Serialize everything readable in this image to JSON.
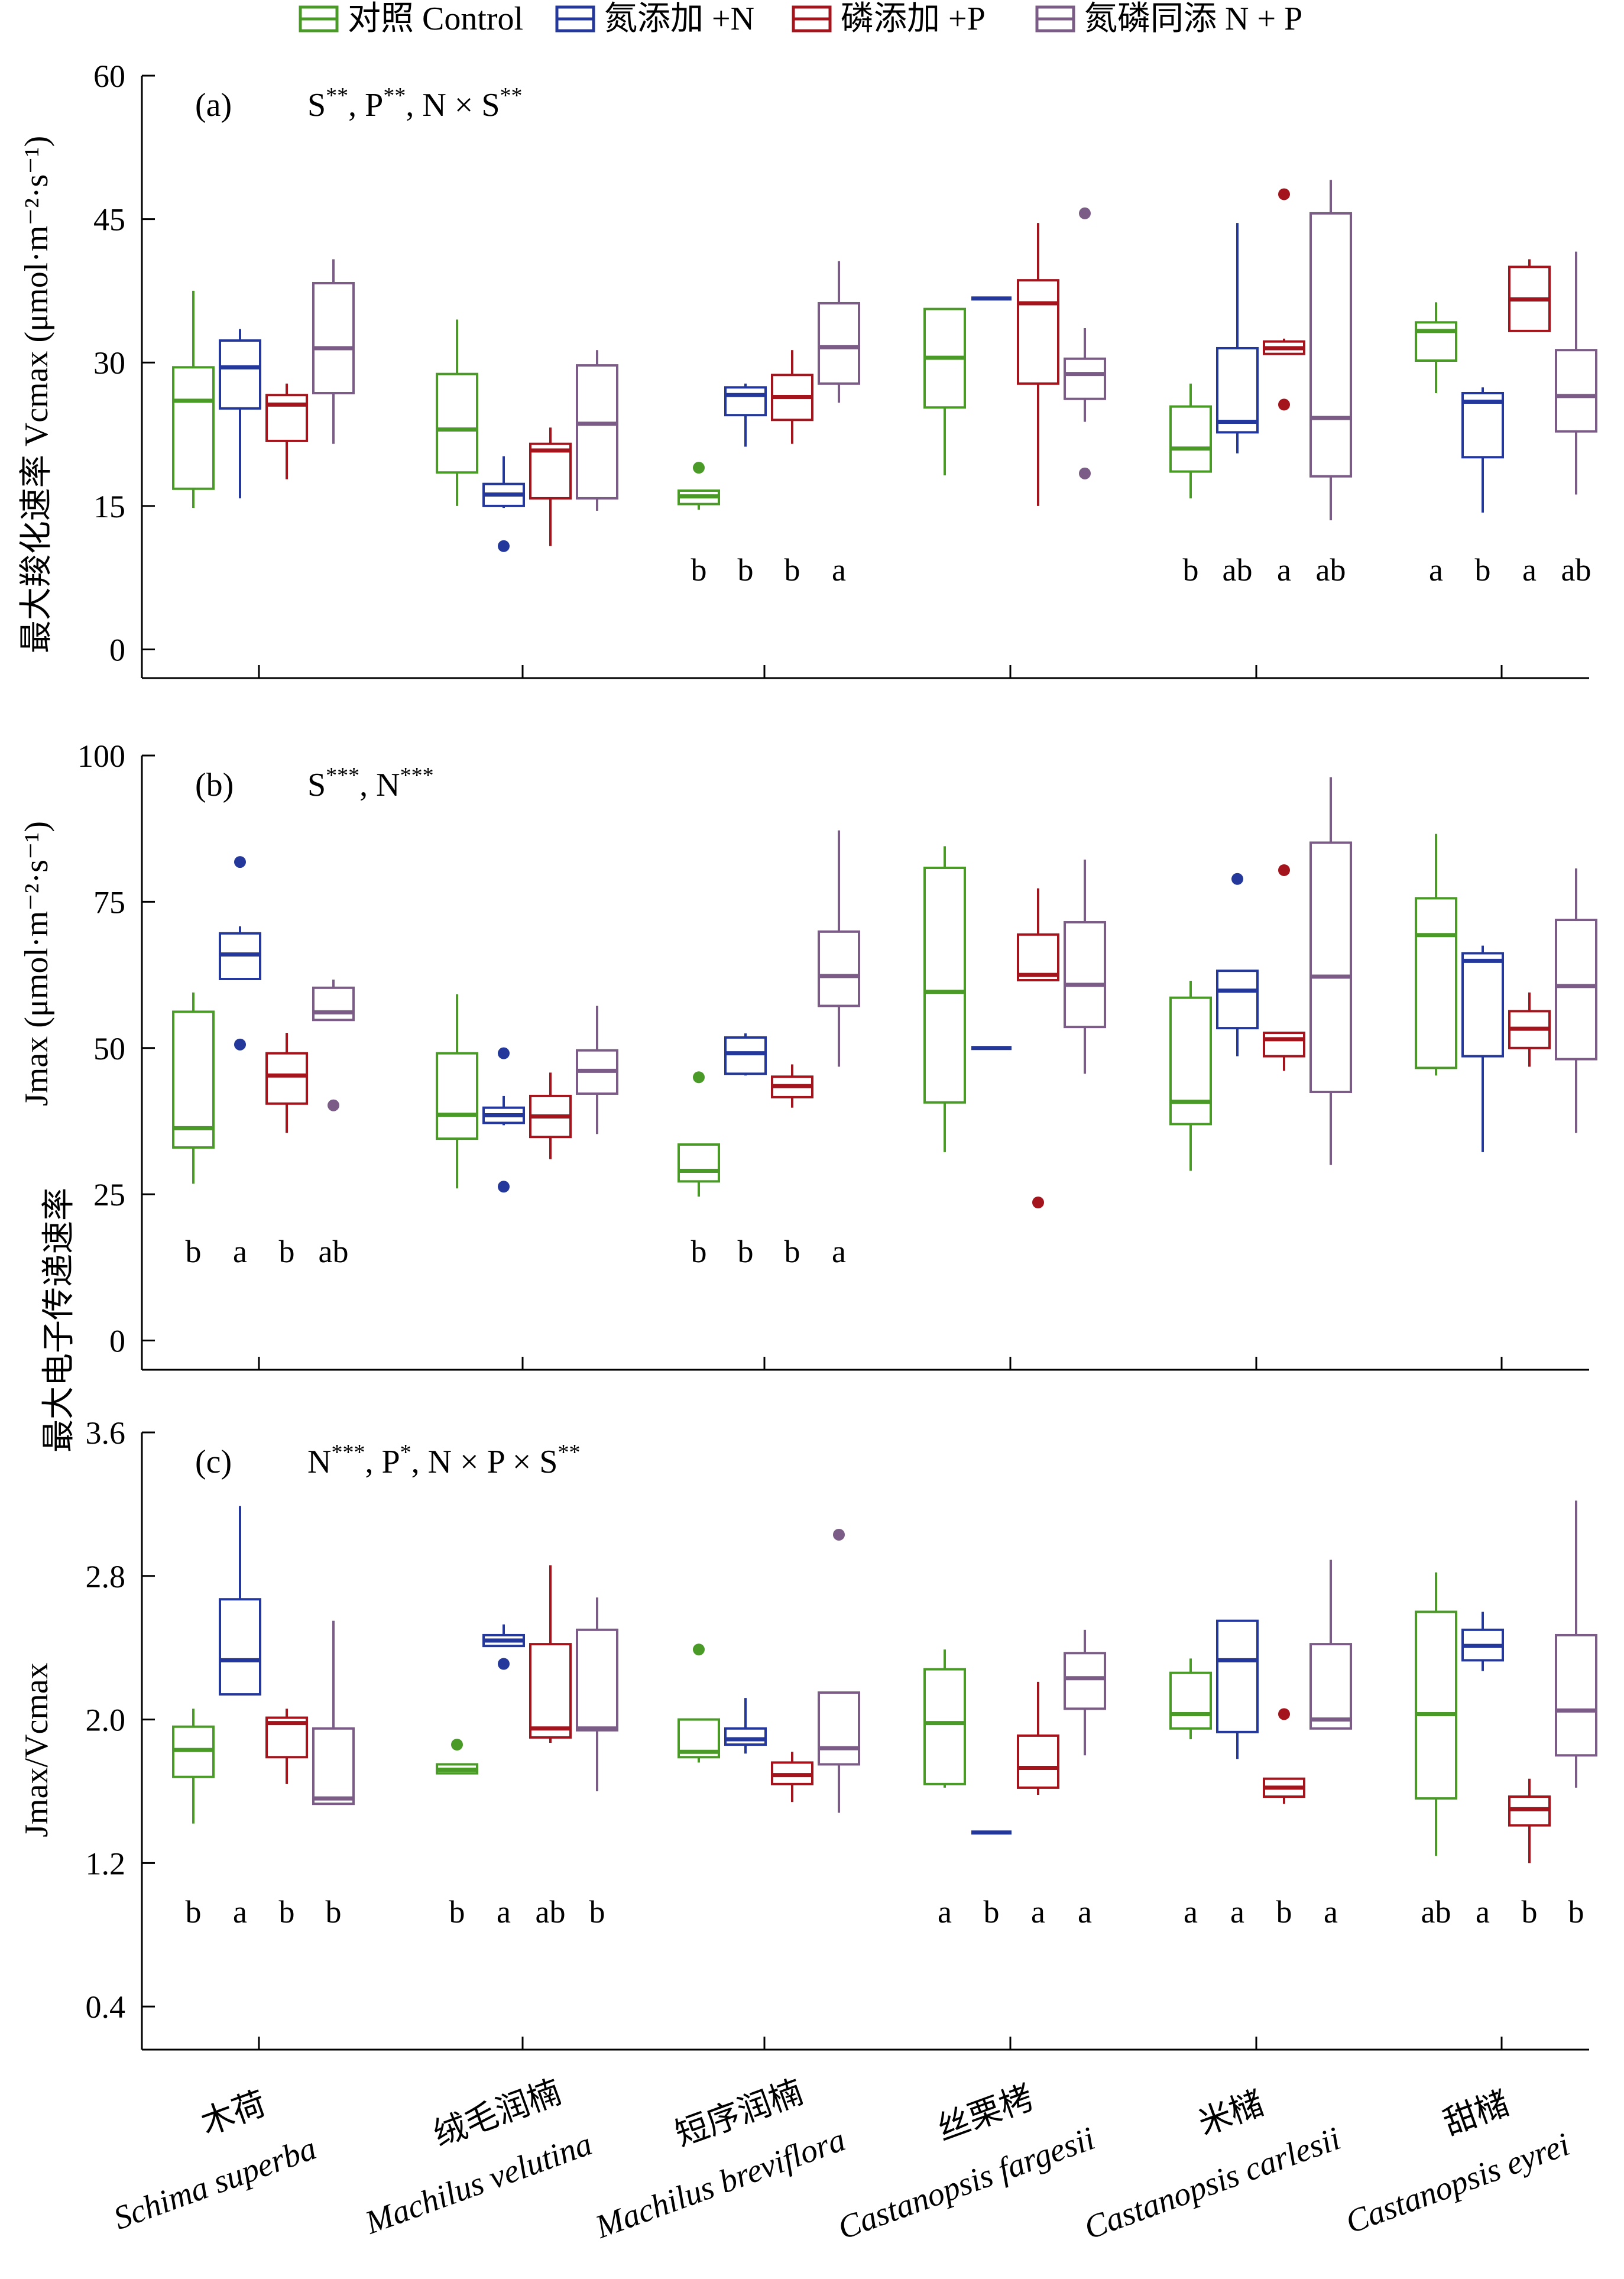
{
  "legend": {
    "items": [
      {
        "label": "对照 Control",
        "color": "#4a9a27"
      },
      {
        "label": "氮添加 +N",
        "color": "#23389a"
      },
      {
        "label": "磷添加 +P",
        "color": "#a3141c"
      },
      {
        "label": "氮磷同添 N + P",
        "color": "#7b5c86"
      }
    ]
  },
  "y_axis_shared_label": "最大电子传递速率",
  "chart_data": [
    {
      "type": "box",
      "panel_label": "(a)",
      "significance": "S**, P**, N × S**",
      "ylabel": "最大羧化速率 Vcmax (μmol·m⁻²·s⁻¹)",
      "ylim": [
        -3,
        60
      ],
      "yticks": [
        0,
        15,
        30,
        45,
        60
      ],
      "groups": [
        {
          "species": "木荷",
          "boxes": [
            {
              "min": 14.8,
              "q1": 16.8,
              "median": 26,
              "q3": 29.5,
              "max": 37.5,
              "outliers": [],
              "letter": ""
            },
            {
              "min": 15.8,
              "q1": 25.2,
              "median": 29.5,
              "q3": 32.3,
              "max": 33.5,
              "outliers": [],
              "letter": ""
            },
            {
              "min": 17.8,
              "q1": 21.8,
              "median": 25.6,
              "q3": 26.6,
              "max": 27.8,
              "outliers": [],
              "letter": ""
            },
            {
              "min": 21.5,
              "q1": 26.8,
              "median": 31.5,
              "q3": 38.3,
              "max": 40.8,
              "outliers": [],
              "letter": ""
            }
          ]
        },
        {
          "species": "绒毛润楠",
          "boxes": [
            {
              "min": 15,
              "q1": 18.5,
              "median": 23,
              "q3": 28.8,
              "max": 34.5,
              "outliers": [],
              "letter": ""
            },
            {
              "min": 14.8,
              "q1": 15,
              "median": 16.2,
              "q3": 17.3,
              "max": 20.2,
              "outliers": [
                10.8
              ],
              "letter": ""
            },
            {
              "min": 10.8,
              "q1": 15.8,
              "median": 20.8,
              "q3": 21.5,
              "max": 23.2,
              "outliers": [],
              "letter": ""
            },
            {
              "min": 14.5,
              "q1": 15.8,
              "median": 23.6,
              "q3": 29.7,
              "max": 31.3,
              "outliers": [],
              "letter": ""
            }
          ]
        },
        {
          "species": "短序润楠",
          "boxes": [
            {
              "min": 14.6,
              "q1": 15.2,
              "median": 16,
              "q3": 16.6,
              "max": 16.6,
              "outliers": [
                19
              ],
              "letter": "b"
            },
            {
              "min": 21.2,
              "q1": 24.5,
              "median": 26.6,
              "q3": 27.4,
              "max": 27.8,
              "outliers": [],
              "letter": "b"
            },
            {
              "min": 21.5,
              "q1": 24,
              "median": 26.4,
              "q3": 28.7,
              "max": 31.3,
              "outliers": [],
              "letter": "b"
            },
            {
              "min": 25.8,
              "q1": 27.8,
              "median": 31.6,
              "q3": 36.2,
              "max": 40.6,
              "outliers": [],
              "letter": "a"
            }
          ]
        },
        {
          "species": "丝栗栲",
          "boxes": [
            {
              "min": 18.2,
              "q1": 25.3,
              "median": 30.5,
              "q3": 35.6,
              "max": 35.6,
              "outliers": [],
              "letter": ""
            },
            {
              "min": 36.7,
              "q1": 36.7,
              "median": 36.7,
              "q3": 36.7,
              "max": 36.7,
              "outliers": [],
              "letter": ""
            },
            {
              "min": 15,
              "q1": 27.8,
              "median": 36.2,
              "q3": 38.6,
              "max": 44.6,
              "outliers": [],
              "letter": ""
            },
            {
              "min": 23.8,
              "q1": 26.2,
              "median": 28.8,
              "q3": 30.4,
              "max": 33.6,
              "outliers": [
                45.6,
                18.4
              ],
              "letter": ""
            }
          ]
        },
        {
          "species": "米槠",
          "boxes": [
            {
              "min": 15.8,
              "q1": 18.6,
              "median": 21,
              "q3": 25.4,
              "max": 27.8,
              "outliers": [],
              "letter": "b"
            },
            {
              "min": 20.5,
              "q1": 22.7,
              "median": 23.8,
              "q3": 31.5,
              "max": 44.6,
              "outliers": [],
              "letter": "ab"
            },
            {
              "min": 30.9,
              "q1": 30.9,
              "median": 31.5,
              "q3": 32.2,
              "max": 32.5,
              "outliers": [
                47.6,
                25.6
              ],
              "letter": "a"
            },
            {
              "min": 13.5,
              "q1": 18.1,
              "median": 24.2,
              "q3": 45.6,
              "max": 49.1,
              "outliers": [],
              "letter": "ab"
            }
          ]
        },
        {
          "species": "甜槠",
          "boxes": [
            {
              "min": 26.8,
              "q1": 30.2,
              "median": 33.3,
              "q3": 34.2,
              "max": 36.3,
              "outliers": [],
              "letter": "a"
            },
            {
              "min": 14.3,
              "q1": 20.1,
              "median": 25.9,
              "q3": 26.8,
              "max": 27.4,
              "outliers": [],
              "letter": "b"
            },
            {
              "min": 33.2,
              "q1": 33.3,
              "median": 36.6,
              "q3": 40,
              "max": 40.8,
              "outliers": [],
              "letter": "a"
            },
            {
              "min": 16.2,
              "q1": 22.8,
              "median": 26.5,
              "q3": 31.3,
              "max": 41.6,
              "outliers": [],
              "letter": "ab"
            }
          ]
        }
      ]
    },
    {
      "type": "box",
      "panel_label": "(b)",
      "significance": "S***, N***",
      "ylabel": "Jmax (μmol·m⁻²·s⁻¹)",
      "ylim": [
        -5,
        100
      ],
      "yticks": [
        0,
        25,
        50,
        75,
        100
      ],
      "groups": [
        {
          "species": "木荷",
          "boxes": [
            {
              "min": 26.8,
              "q1": 33,
              "median": 36.3,
              "q3": 56.2,
              "max": 59.5,
              "outliers": [],
              "letter": "b"
            },
            {
              "min": 61.8,
              "q1": 61.8,
              "median": 66,
              "q3": 69.6,
              "max": 70.8,
              "outliers": [
                81.8,
                50.6
              ],
              "letter": "a"
            },
            {
              "min": 35.5,
              "q1": 40.5,
              "median": 45.3,
              "q3": 49.1,
              "max": 52.6,
              "outliers": [],
              "letter": "b"
            },
            {
              "min": 54.8,
              "q1": 54.8,
              "median": 56.1,
              "q3": 60.3,
              "max": 61.7,
              "outliers": [
                40.2
              ],
              "letter": "ab"
            }
          ]
        },
        {
          "species": "绒毛润楠",
          "boxes": [
            {
              "min": 26,
              "q1": 34.5,
              "median": 38.6,
              "q3": 49.1,
              "max": 59.2,
              "outliers": [],
              "letter": ""
            },
            {
              "min": 36.8,
              "q1": 37.2,
              "median": 38.5,
              "q3": 39.8,
              "max": 41.8,
              "outliers": [
                49.1,
                26.3
              ],
              "letter": ""
            },
            {
              "min": 31,
              "q1": 34.8,
              "median": 38.3,
              "q3": 41.8,
              "max": 45.8,
              "outliers": [],
              "letter": ""
            },
            {
              "min": 35.3,
              "q1": 42.2,
              "median": 46.1,
              "q3": 49.6,
              "max": 57.2,
              "outliers": [],
              "letter": ""
            }
          ]
        },
        {
          "species": "短序润楠",
          "boxes": [
            {
              "min": 24.6,
              "q1": 27.2,
              "median": 29,
              "q3": 33.5,
              "max": 33.5,
              "outliers": [
                45
              ],
              "letter": "b"
            },
            {
              "min": 45.3,
              "q1": 45.6,
              "median": 49.1,
              "q3": 51.8,
              "max": 52.5,
              "outliers": [],
              "letter": "b"
            },
            {
              "min": 39.8,
              "q1": 41.6,
              "median": 43.5,
              "q3": 45.1,
              "max": 47.2,
              "outliers": [],
              "letter": "b"
            },
            {
              "min": 46.8,
              "q1": 57.2,
              "median": 62.3,
              "q3": 69.9,
              "max": 87.2,
              "outliers": [],
              "letter": "a"
            }
          ]
        },
        {
          "species": "丝栗栲",
          "boxes": [
            {
              "min": 32.2,
              "q1": 40.7,
              "median": 59.6,
              "q3": 80.8,
              "max": 84.5,
              "outliers": [],
              "letter": ""
            },
            {
              "min": 50,
              "q1": 50,
              "median": 50,
              "q3": 50,
              "max": 50,
              "outliers": [],
              "letter": ""
            },
            {
              "min": 61.6,
              "q1": 61.6,
              "median": 62.5,
              "q3": 69.4,
              "max": 77.3,
              "outliers": [
                23.6
              ],
              "letter": ""
            },
            {
              "min": 45.6,
              "q1": 53.6,
              "median": 60.8,
              "q3": 71.5,
              "max": 82.2,
              "outliers": [],
              "letter": ""
            }
          ]
        },
        {
          "species": "米槠",
          "boxes": [
            {
              "min": 29,
              "q1": 37,
              "median": 40.8,
              "q3": 58.6,
              "max": 61.5,
              "outliers": [],
              "letter": ""
            },
            {
              "min": 48.6,
              "q1": 53.4,
              "median": 59.8,
              "q3": 63.2,
              "max": 63.2,
              "outliers": [
                78.9
              ],
              "letter": ""
            },
            {
              "min": 46.1,
              "q1": 48.6,
              "median": 51.5,
              "q3": 52.6,
              "max": 52.6,
              "outliers": [
                80.4
              ],
              "letter": ""
            },
            {
              "min": 30,
              "q1": 42.5,
              "median": 62.2,
              "q3": 85.1,
              "max": 96.3,
              "outliers": [],
              "letter": ""
            }
          ]
        },
        {
          "species": "甜槠",
          "boxes": [
            {
              "min": 45.3,
              "q1": 46.6,
              "median": 69.3,
              "q3": 75.6,
              "max": 86.6,
              "outliers": [],
              "letter": ""
            },
            {
              "min": 32.2,
              "q1": 48.6,
              "median": 64.9,
              "q3": 66.2,
              "max": 67.5,
              "outliers": [],
              "letter": ""
            },
            {
              "min": 46.8,
              "q1": 50,
              "median": 53.3,
              "q3": 56.3,
              "max": 59.5,
              "outliers": [],
              "letter": ""
            },
            {
              "min": 35.5,
              "q1": 48.1,
              "median": 60.6,
              "q3": 71.9,
              "max": 80.7,
              "outliers": [],
              "letter": ""
            }
          ]
        }
      ]
    },
    {
      "type": "box",
      "panel_label": "(c)",
      "significance": "N***, P*, N × P × S**",
      "ylabel": "Jmax/Vcmax",
      "ylim": [
        0.16,
        3.6
      ],
      "yticks": [
        0.4,
        1.2,
        2.0,
        2.8,
        3.6
      ],
      "groups": [
        {
          "species": "木荷",
          "boxes": [
            {
              "min": 1.42,
              "q1": 1.68,
              "median": 1.83,
              "q3": 1.96,
              "max": 2.06,
              "outliers": [],
              "letter": "b"
            },
            {
              "min": 2.14,
              "q1": 2.14,
              "median": 2.33,
              "q3": 2.67,
              "max": 3.19,
              "outliers": [],
              "letter": "a"
            },
            {
              "min": 1.64,
              "q1": 1.79,
              "median": 1.98,
              "q3": 2.01,
              "max": 2.06,
              "outliers": [],
              "letter": "b"
            },
            {
              "min": 1.53,
              "q1": 1.53,
              "median": 1.56,
              "q3": 1.95,
              "max": 2.55,
              "outliers": [],
              "letter": "b"
            }
          ]
        },
        {
          "species": "绒毛润楠",
          "boxes": [
            {
              "min": 1.7,
              "q1": 1.7,
              "median": 1.72,
              "q3": 1.75,
              "max": 1.75,
              "outliers": [
                1.86
              ],
              "letter": "b"
            },
            {
              "min": 2.41,
              "q1": 2.41,
              "median": 2.44,
              "q3": 2.47,
              "max": 2.53,
              "outliers": [
                2.31
              ],
              "letter": "a"
            },
            {
              "min": 1.87,
              "q1": 1.9,
              "median": 1.95,
              "q3": 2.42,
              "max": 2.86,
              "outliers": [],
              "letter": "ab"
            },
            {
              "min": 1.6,
              "q1": 1.94,
              "median": 1.95,
              "q3": 2.5,
              "max": 2.68,
              "outliers": [],
              "letter": "b"
            }
          ]
        },
        {
          "species": "短序润楠",
          "boxes": [
            {
              "min": 1.76,
              "q1": 1.79,
              "median": 1.82,
              "q3": 2.0,
              "max": 2.0,
              "outliers": [
                2.39
              ],
              "letter": ""
            },
            {
              "min": 1.81,
              "q1": 1.86,
              "median": 1.89,
              "q3": 1.95,
              "max": 2.12,
              "outliers": [],
              "letter": ""
            },
            {
              "min": 1.54,
              "q1": 1.64,
              "median": 1.69,
              "q3": 1.76,
              "max": 1.82,
              "outliers": [],
              "letter": ""
            },
            {
              "min": 1.48,
              "q1": 1.75,
              "median": 1.84,
              "q3": 2.15,
              "max": 2.15,
              "outliers": [
                3.03
              ],
              "letter": ""
            }
          ]
        },
        {
          "species": "丝栗栲",
          "boxes": [
            {
              "min": 1.62,
              "q1": 1.64,
              "median": 1.98,
              "q3": 2.28,
              "max": 2.39,
              "outliers": [],
              "letter": "a"
            },
            {
              "min": 1.37,
              "q1": 1.37,
              "median": 1.37,
              "q3": 1.37,
              "max": 1.37,
              "outliers": [],
              "letter": "b"
            },
            {
              "min": 1.58,
              "q1": 1.62,
              "median": 1.73,
              "q3": 1.91,
              "max": 2.21,
              "outliers": [],
              "letter": "a"
            },
            {
              "min": 1.8,
              "q1": 2.06,
              "median": 2.23,
              "q3": 2.37,
              "max": 2.5,
              "outliers": [],
              "letter": "a"
            }
          ]
        },
        {
          "species": "米槠",
          "boxes": [
            {
              "min": 1.89,
              "q1": 1.95,
              "median": 2.03,
              "q3": 2.26,
              "max": 2.34,
              "outliers": [],
              "letter": "a"
            },
            {
              "min": 1.78,
              "q1": 1.93,
              "median": 2.33,
              "q3": 2.55,
              "max": 2.55,
              "outliers": [],
              "letter": "a"
            },
            {
              "min": 1.53,
              "q1": 1.57,
              "median": 1.62,
              "q3": 1.67,
              "max": 1.67,
              "outliers": [
                2.03
              ],
              "letter": "b"
            },
            {
              "min": 1.95,
              "q1": 1.95,
              "median": 2.0,
              "q3": 2.42,
              "max": 2.89,
              "outliers": [],
              "letter": "a"
            }
          ]
        },
        {
          "species": "甜槠",
          "boxes": [
            {
              "min": 1.24,
              "q1": 1.56,
              "median": 2.03,
              "q3": 2.6,
              "max": 2.82,
              "outliers": [],
              "letter": "ab"
            },
            {
              "min": 2.27,
              "q1": 2.33,
              "median": 2.41,
              "q3": 2.5,
              "max": 2.6,
              "outliers": [],
              "letter": "a"
            },
            {
              "min": 1.2,
              "q1": 1.41,
              "median": 1.5,
              "q3": 1.57,
              "max": 1.67,
              "outliers": [],
              "letter": "b"
            },
            {
              "min": 1.62,
              "q1": 1.8,
              "median": 2.05,
              "q3": 2.47,
              "max": 3.22,
              "outliers": [],
              "letter": "b"
            }
          ]
        }
      ]
    }
  ],
  "x_labels": [
    {
      "cn": "木荷",
      "latin": "Schima superba"
    },
    {
      "cn": "绒毛润楠",
      "latin": "Machilus velutina"
    },
    {
      "cn": "短序润楠",
      "latin": "Machilus breviflora"
    },
    {
      "cn": "丝栗栲",
      "latin": "Castanopsis fargesii"
    },
    {
      "cn": "米槠",
      "latin": "Castanopsis carlesii"
    },
    {
      "cn": "甜槠",
      "latin": "Castanopsis eyrei"
    }
  ]
}
